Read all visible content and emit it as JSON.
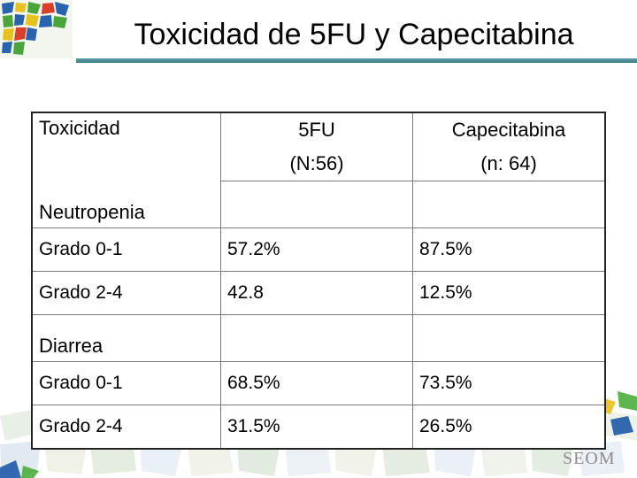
{
  "title": "Toxicidad de 5FU y Capecitabina",
  "table": {
    "headers": [
      "Toxicidad",
      "5FU",
      "(N:56)",
      "Capecitabina",
      "(n: 64)"
    ],
    "sections": [
      {
        "label": "Neutropenia",
        "rows": [
          [
            "Grado 0-1",
            "57.2%",
            "87.5%"
          ],
          [
            "Grado 2-4",
            "42.8",
            "12.5%"
          ]
        ]
      },
      {
        "label": "Diarrea",
        "rows": [
          [
            "Grado 0-1",
            "68.5%",
            "73.5%"
          ],
          [
            "Grado 2-4",
            "31.5%",
            "26.5%"
          ]
        ]
      }
    ]
  },
  "footer_logo": "SEOM",
  "colors": {
    "title_rule": "#3f7f8c",
    "mosaic_blue": "#1e5aa8",
    "mosaic_green": "#4caf3c",
    "mosaic_yellow": "#e8c21a"
  }
}
